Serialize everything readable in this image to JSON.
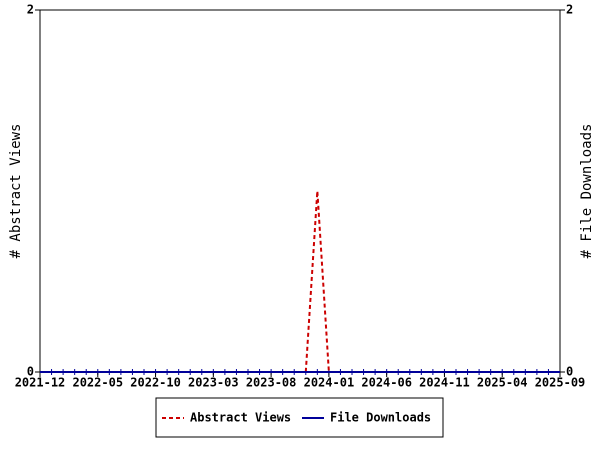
{
  "chart_data": {
    "type": "line",
    "x": [
      "2021-12",
      "2022-01",
      "2022-02",
      "2022-03",
      "2022-04",
      "2022-05",
      "2022-06",
      "2022-07",
      "2022-08",
      "2022-09",
      "2022-10",
      "2022-11",
      "2022-12",
      "2023-01",
      "2023-02",
      "2023-03",
      "2023-04",
      "2023-05",
      "2023-06",
      "2023-07",
      "2023-08",
      "2023-09",
      "2023-10",
      "2023-11",
      "2023-12",
      "2024-01",
      "2024-02",
      "2024-03",
      "2024-04",
      "2024-05",
      "2024-06",
      "2024-07",
      "2024-08",
      "2024-09",
      "2024-10",
      "2024-11",
      "2024-12",
      "2025-01",
      "2025-02",
      "2025-03",
      "2025-04",
      "2025-05",
      "2025-06",
      "2025-07",
      "2025-08",
      "2025-09"
    ],
    "xticks": [
      "2021-12",
      "2022-05",
      "2022-10",
      "2023-03",
      "2023-08",
      "2024-01",
      "2024-06",
      "2024-11",
      "2025-04",
      "2025-09"
    ],
    "series": [
      {
        "name": "Abstract Views",
        "color": "#cc0000",
        "dashed": true,
        "axis": "y",
        "values": [
          0,
          0,
          0,
          0,
          0,
          0,
          0,
          0,
          0,
          0,
          0,
          0,
          0,
          0,
          0,
          0,
          0,
          0,
          0,
          0,
          0,
          0,
          0,
          0,
          1,
          0,
          0,
          0,
          0,
          0,
          0,
          0,
          0,
          0,
          0,
          0,
          0,
          0,
          0,
          0,
          0,
          0,
          0,
          0,
          0,
          0
        ]
      },
      {
        "name": "File Downloads",
        "color": "#000099",
        "dashed": false,
        "axis": "y2",
        "values": [
          0,
          0,
          0,
          0,
          0,
          0,
          0,
          0,
          0,
          0,
          0,
          0,
          0,
          0,
          0,
          0,
          0,
          0,
          0,
          0,
          0,
          0,
          0,
          0,
          0,
          0,
          0,
          0,
          0,
          0,
          0,
          0,
          0,
          0,
          0,
          0,
          0,
          0,
          0,
          0,
          0,
          0,
          0,
          0,
          0,
          0
        ]
      }
    ],
    "ylabel": "# Abstract Views",
    "y2label": "# File Downloads",
    "ylim": [
      0,
      2
    ],
    "yticks": [
      0,
      2
    ],
    "y2lim": [
      0,
      2
    ],
    "y2ticks": [
      0,
      2
    ],
    "grid": false,
    "legend": "bottom"
  }
}
